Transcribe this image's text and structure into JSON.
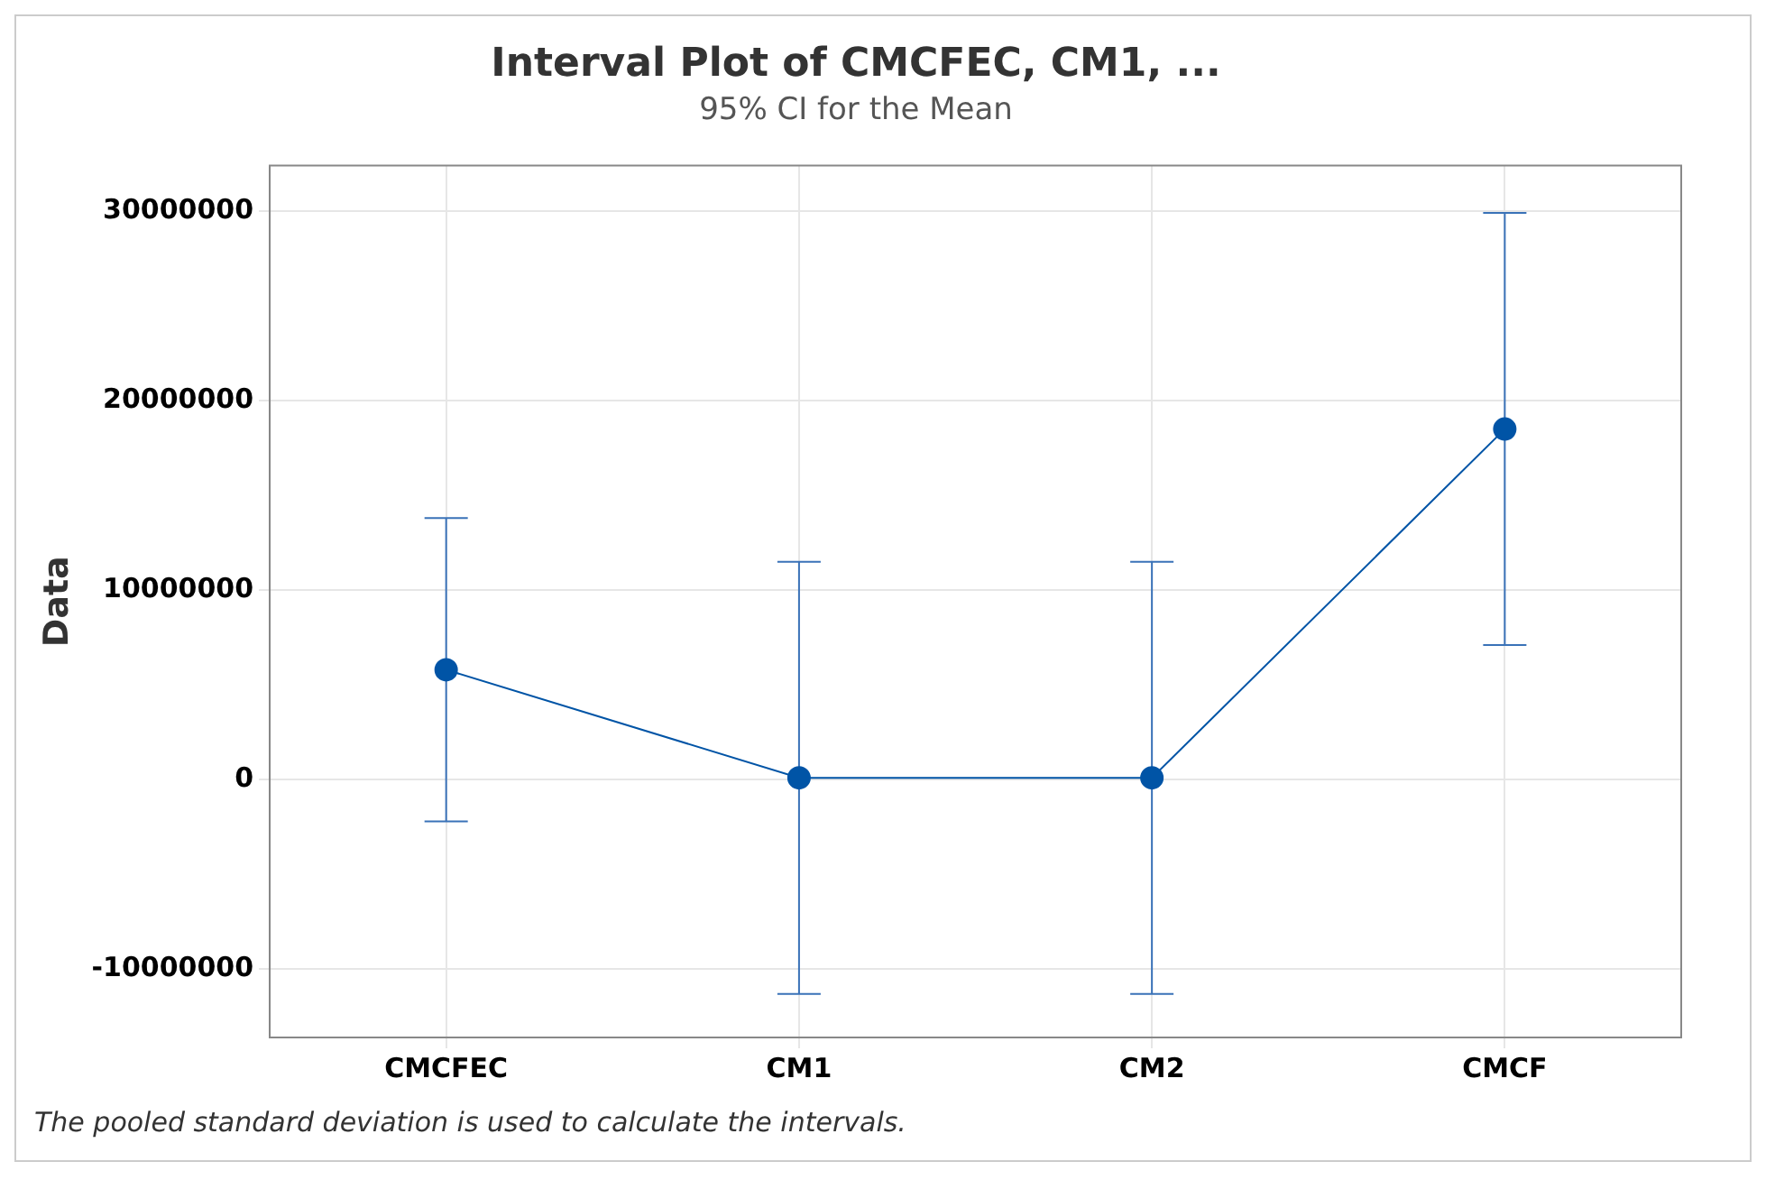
{
  "chart_data": {
    "type": "line",
    "title": "Interval Plot of CMCFEC, CM1, ...",
    "subtitle": "95% CI for the Mean",
    "ylabel": "Data",
    "categories": [
      "CMCFEC",
      "CM1",
      "CM2",
      "CMCF"
    ],
    "series": [
      {
        "color": "#0054a6",
        "values": [
          5800000,
          100000,
          100000,
          18500000
        ],
        "errors": [
          8000000,
          11400000,
          11400000,
          11400000
        ]
      }
    ],
    "ylim": [
      -13600000,
      32400000
    ],
    "yticks": [
      -10000000,
      0,
      10000000,
      20000000,
      30000000
    ],
    "grid": true,
    "marker": "circle",
    "line_style": "solid",
    "legend": false,
    "annotations": [
      "The pooled standard deviation is used to calculate the intervals."
    ]
  }
}
